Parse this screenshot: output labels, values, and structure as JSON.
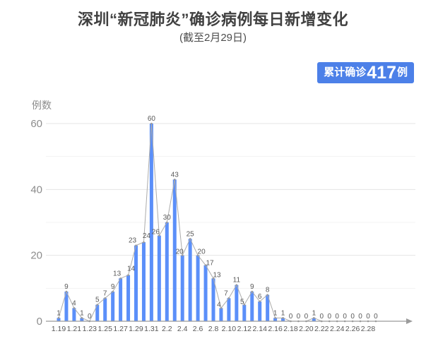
{
  "chart_data": {
    "type": "bar",
    "title": "深圳“新冠肺炎”确诊病例每日新增变化",
    "subtitle": "(截至2月29日)",
    "ylabel": "例数",
    "xlabel": "",
    "categories": [
      "1.19",
      "1.20",
      "1.21",
      "1.22",
      "1.23",
      "1.24",
      "1.25",
      "1.26",
      "1.27",
      "1.28",
      "1.29",
      "1.30",
      "1.31",
      "2.1",
      "2.2",
      "2.3",
      "2.4",
      "2.5",
      "2.6",
      "2.7",
      "2.8",
      "2.9",
      "2.10",
      "2.11",
      "2.12",
      "2.13",
      "2.14",
      "2.15",
      "2.16",
      "2.17",
      "2.18",
      "2.19",
      "2.20",
      "2.21",
      "2.22",
      "2.23",
      "2.24",
      "2.25",
      "2.26",
      "2.27",
      "2.28",
      "2.29"
    ],
    "values": [
      1,
      9,
      4,
      1,
      0,
      5,
      7,
      9,
      13,
      14,
      23,
      24,
      60,
      26,
      30,
      43,
      20,
      25,
      20,
      17,
      13,
      4,
      7,
      11,
      5,
      9,
      6,
      8,
      1,
      1,
      0,
      0,
      0,
      1,
      0,
      0,
      0,
      0,
      0,
      0,
      0,
      0
    ],
    "ylim": [
      0,
      60
    ],
    "y_ticks": [
      0,
      20,
      40,
      60
    ],
    "y_minor_grid": [
      10,
      30,
      50
    ],
    "x_tick_step": 2,
    "grid": true,
    "legend_position": "none",
    "value_labels": true,
    "overlay": "line-with-point-markers"
  },
  "badge": {
    "prefix": "累计确诊",
    "number": "417",
    "suffix": "例"
  },
  "colors": {
    "bar": "#5B8FF9",
    "line": "#ABABAB",
    "marker": "#9B9B9B",
    "axis": "#9B9B9B",
    "grid_major": "#E5E5E5",
    "grid_minor": "#F3F3F3",
    "badge_bg": "#4C80E8",
    "badge_text": "#FFFFFF",
    "title_text": "#404040",
    "value_label_text": "#595959",
    "x_tick_text": "#595959",
    "y_tick_text": "#8C8C8C"
  }
}
